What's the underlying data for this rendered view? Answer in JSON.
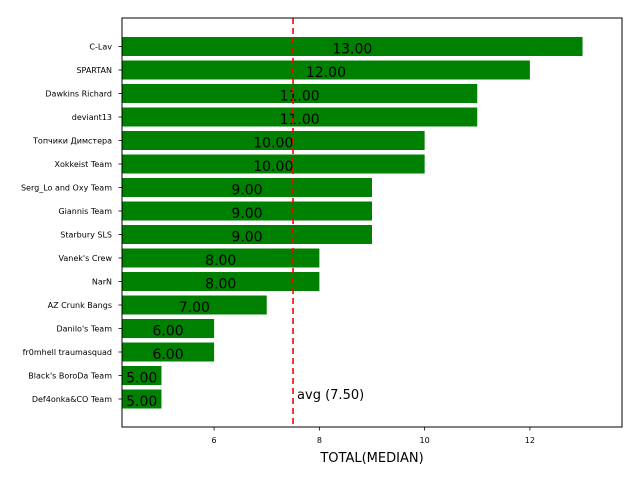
{
  "chart_data": {
    "type": "bar",
    "orientation": "horizontal",
    "categories": [
      "C-Lav",
      "SPARTAN",
      "Dawkins Richard",
      "deviant13",
      "Топчики Димстера",
      "Xokkeist Team",
      "Serg_Lo and Oxy Team",
      "Giannis Team",
      "Starbury SLS",
      "Vanek's Crew",
      "NarN",
      "AZ Crunk Bangs",
      "Danilo's Team",
      "fr0mhell traumasquad",
      "Black's BoroDa Team",
      "Def4onka&CO Team"
    ],
    "values": [
      13,
      12,
      11,
      11,
      10,
      10,
      9,
      9,
      9,
      8,
      8,
      7,
      6,
      6,
      5,
      5
    ],
    "data_labels": [
      "13.00",
      "12.00",
      "11.00",
      "11.00",
      "10.00",
      "10.00",
      "9.00",
      "9.00",
      "9.00",
      "8.00",
      "8.00",
      "7.00",
      "6.00",
      "6.00",
      "5.00",
      "5.00"
    ],
    "xlabel": "TOTAL(MEDIAN)",
    "ylabel": "",
    "title": "",
    "xlim": [
      4.25,
      13.75
    ],
    "x_ticks": [
      6,
      8,
      10,
      12
    ],
    "x_tick_labels": [
      "6",
      "8",
      "10",
      "12"
    ],
    "bar_color": "#008000",
    "reference_line": {
      "value": 7.5,
      "color": "#ff0000",
      "style": "dashed",
      "label": "avg (7.50)"
    },
    "grid": false
  }
}
